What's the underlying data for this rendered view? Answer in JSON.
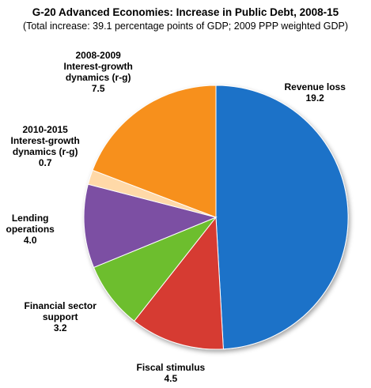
{
  "title": "G-20 Advanced Economies: Increase in Public Debt, 2008-15",
  "subtitle": "(Total increase: 39.1 percentage points of GDP; 2009 PPP weighted GDP)",
  "chart_data": {
    "type": "pie",
    "unit": "percentage points of GDP",
    "total": 39.1,
    "slices": [
      {
        "name": "Revenue loss",
        "label_lines": [
          "Revenue loss"
        ],
        "value": 19.2,
        "color": "#1F72C8"
      },
      {
        "name": "Fiscal stimulus",
        "label_lines": [
          "Fiscal stimulus"
        ],
        "value": 4.5,
        "color": "#D63A30"
      },
      {
        "name": "Financial sector support",
        "label_lines": [
          "Financial sector",
          "support"
        ],
        "value": 3.2,
        "color": "#6DBE2E"
      },
      {
        "name": "Lending operations",
        "label_lines": [
          "Lending",
          "operations"
        ],
        "value": 4.0,
        "color": "#7B4FA3"
      },
      {
        "name": "2010-2015 Interest-growth dynamics (r-g)",
        "label_lines": [
          "2010-2015",
          "Interest-growth",
          "dynamics (r-g)"
        ],
        "value": 0.7,
        "color": "#FFD9A8"
      },
      {
        "name": "2008-2009 Interest-growth dynamics (r-g)",
        "label_lines": [
          "2008-2009",
          "Interest-growth",
          "dynamics (r-g)"
        ],
        "value": 7.5,
        "color": "#F7901E"
      }
    ]
  }
}
